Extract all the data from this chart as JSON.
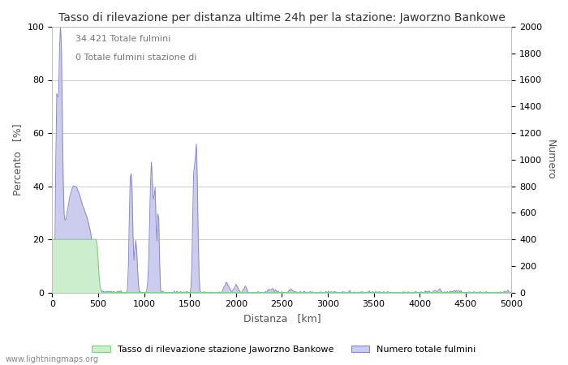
{
  "title": "Tasso di rilevazione per distanza ultime 24h per la stazione: Jaworzno Bankowe",
  "xlabel": "Distanza   [km]",
  "ylabel_left": "Percento   [%]",
  "ylabel_right": "Numero",
  "xlim": [
    0,
    5000
  ],
  "ylim_left": [
    0,
    100
  ],
  "ylim_right": [
    0,
    2000
  ],
  "xticks": [
    0,
    500,
    1000,
    1500,
    2000,
    2500,
    3000,
    3500,
    4000,
    4500,
    5000
  ],
  "yticks_left": [
    0,
    20,
    40,
    60,
    80,
    100
  ],
  "yticks_right": [
    0,
    200,
    400,
    600,
    800,
    1000,
    1200,
    1400,
    1600,
    1800,
    2000
  ],
  "annotation_line1": "34.421 Totale fulmini",
  "annotation_line2": "0 Totale fulmini stazione di",
  "legend_label_green": "Tasso di rilevazione stazione Jaworzno Bankowe",
  "legend_label_blue": "Numero totale fulmini",
  "watermark": "www.lightningmaps.org",
  "line_color": "#8888cc",
  "fill_color": "#ccccee",
  "green_line_color": "#88cc88",
  "green_fill_color": "#cceecc",
  "background_color": "#ffffff",
  "grid_color": "#aaaaaa",
  "title_color": "#333333",
  "label_color": "#555555",
  "title_fontsize": 10,
  "axis_fontsize": 9,
  "tick_fontsize": 8,
  "annot_fontsize": 8,
  "legend_fontsize": 8,
  "watermark_fontsize": 7
}
